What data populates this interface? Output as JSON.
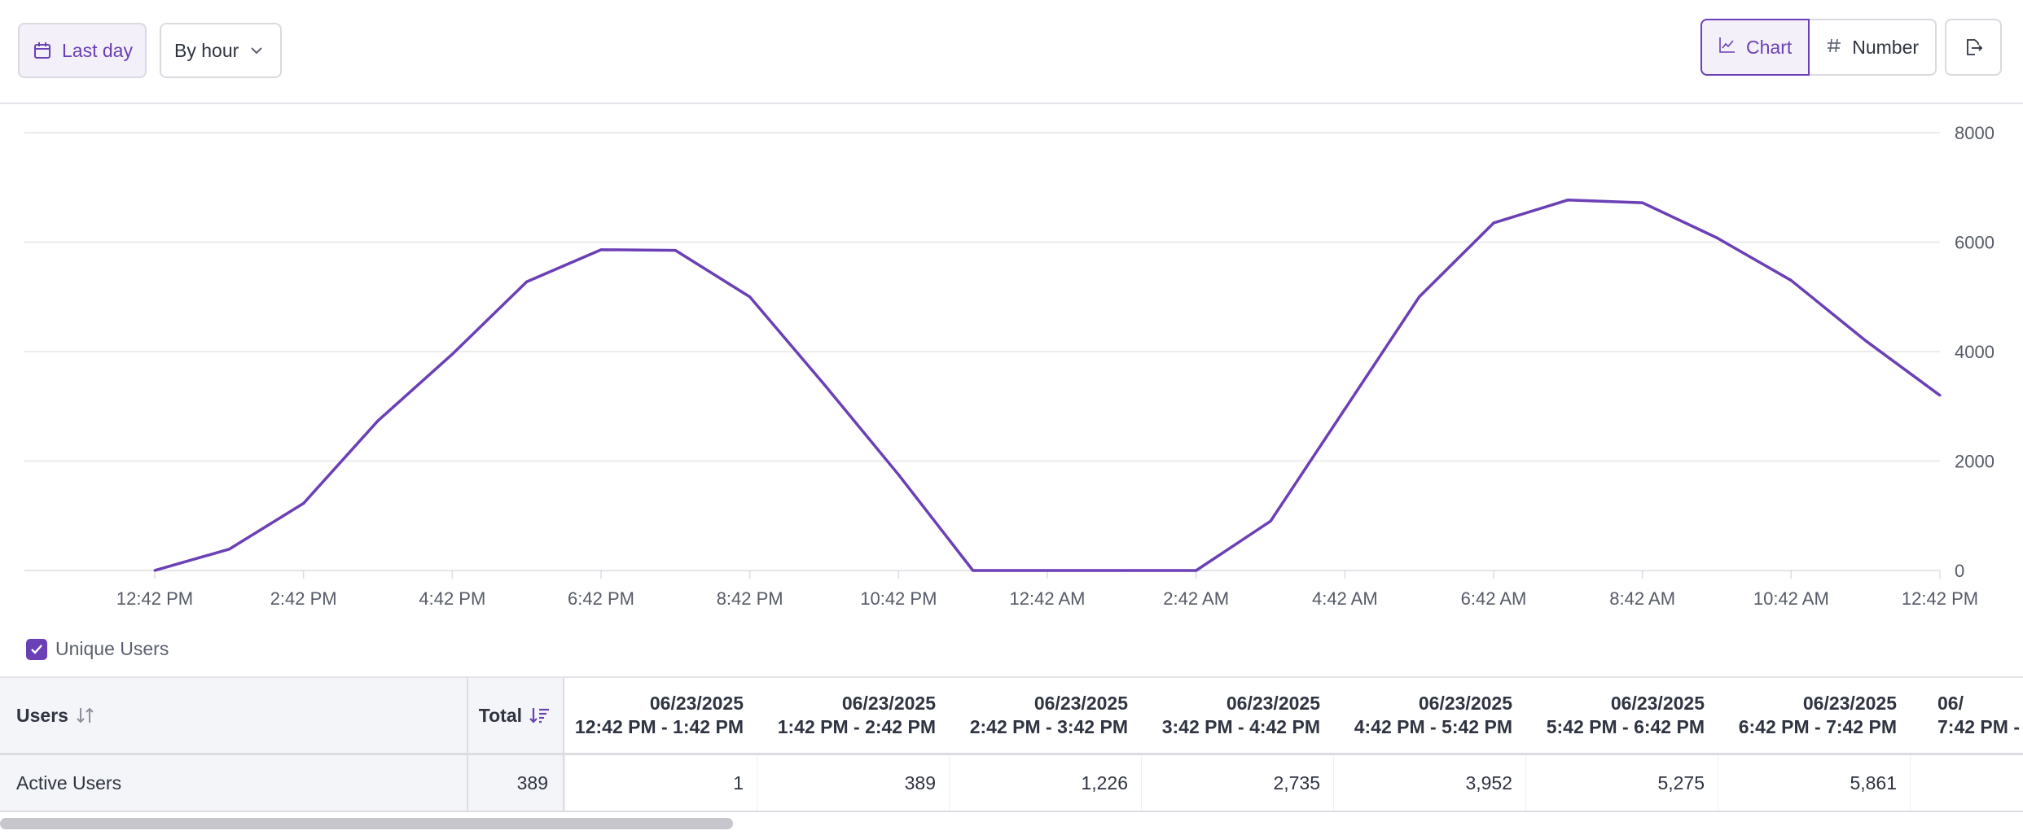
{
  "toolbar": {
    "date_range_label": "Last day",
    "interval_label": "By hour",
    "view_chart_label": "Chart",
    "view_number_label": "Number"
  },
  "colors": {
    "accent": "#6b3fb5",
    "grid": "#e6e6ea",
    "text_muted": "#555a66"
  },
  "chart_data": {
    "type": "line",
    "x": [
      "12:42 PM",
      "1:42 PM",
      "2:42 PM",
      "3:42 PM",
      "4:42 PM",
      "5:42 PM",
      "6:42 PM",
      "7:42 PM",
      "8:42 PM",
      "9:42 PM",
      "10:42 PM",
      "11:42 PM",
      "12:42 AM",
      "1:42 AM",
      "2:42 AM",
      "3:42 AM",
      "4:42 AM",
      "5:42 AM",
      "6:42 AM",
      "7:42 AM",
      "8:42 AM",
      "9:42 AM",
      "10:42 AM",
      "11:42 AM",
      "12:42 PM"
    ],
    "x_tick_labels": [
      "12:42 PM",
      "2:42 PM",
      "4:42 PM",
      "6:42 PM",
      "8:42 PM",
      "10:42 PM",
      "12:42 AM",
      "2:42 AM",
      "4:42 AM",
      "6:42 AM",
      "8:42 AM",
      "10:42 AM",
      "12:42 PM"
    ],
    "series": [
      {
        "name": "Unique Users",
        "values": [
          1,
          389,
          1226,
          2735,
          3952,
          5275,
          5861,
          5850,
          5000,
          3400,
          1750,
          0,
          0,
          0,
          0,
          900,
          2950,
          5000,
          6350,
          6770,
          6720,
          6080,
          5300,
          4200,
          3200
        ]
      }
    ],
    "ylim": [
      0,
      8000
    ],
    "y_ticks": [
      0,
      2000,
      4000,
      6000,
      8000
    ],
    "y_axis_side": "right",
    "grid": true,
    "legend": "bottom-left"
  },
  "legend": {
    "label": "Unique Users"
  },
  "table": {
    "users_header": "Users",
    "total_header": "Total",
    "columns": [
      {
        "date": "06/23/2025",
        "range": "12:42 PM - 1:42 PM"
      },
      {
        "date": "06/23/2025",
        "range": "1:42 PM - 2:42 PM"
      },
      {
        "date": "06/23/2025",
        "range": "2:42 PM - 3:42 PM"
      },
      {
        "date": "06/23/2025",
        "range": "3:42 PM - 4:42 PM"
      },
      {
        "date": "06/23/2025",
        "range": "4:42 PM - 5:42 PM"
      },
      {
        "date": "06/23/2025",
        "range": "5:42 PM - 6:42 PM"
      },
      {
        "date": "06/23/2025",
        "range": "6:42 PM - 7:42 PM"
      },
      {
        "date": "06/",
        "range": "7:42 PM -"
      }
    ],
    "row": {
      "name": "Active Users",
      "total": "389",
      "values": [
        "1",
        "389",
        "1,226",
        "2,735",
        "3,952",
        "5,275",
        "5,861",
        ""
      ]
    }
  }
}
